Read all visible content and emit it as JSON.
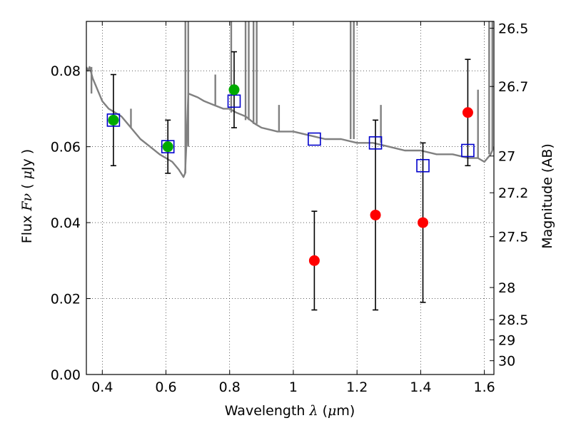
{
  "chart_data": {
    "type": "scatter",
    "xlabel": "Wavelength  λ (μm)",
    "ylabel": "Flux  Fν  ( μJy )",
    "ylabel_right": "Magnitude (AB)",
    "xlim": [
      0.35,
      1.63
    ],
    "ylim": [
      0.0,
      0.093
    ],
    "grid": true,
    "grid_style": "dotted",
    "x_ticks": [
      0.4,
      0.6,
      0.8,
      1.0,
      1.2,
      1.4,
      1.6
    ],
    "x_tick_labels": [
      "0.4",
      "0.6",
      "0.8",
      "1",
      "1.2",
      "1.4",
      "1.6"
    ],
    "y_ticks": [
      0.0,
      0.02,
      0.04,
      0.06,
      0.08
    ],
    "y_tick_labels": [
      "0.00",
      "0.02",
      "0.04",
      "0.06",
      "0.08"
    ],
    "right_ticks": [
      {
        "label": "26.5",
        "mag": 26.5
      },
      {
        "label": "26.7",
        "mag": 26.7
      },
      {
        "label": "27",
        "mag": 27.0
      },
      {
        "label": "27.2",
        "mag": 27.2
      },
      {
        "label": "27.5",
        "mag": 27.5
      },
      {
        "label": "28",
        "mag": 28.0
      },
      {
        "label": "28.5",
        "mag": 28.5
      },
      {
        "label": "29",
        "mag": 29.0
      },
      {
        "label": "30",
        "mag": 30.0
      }
    ],
    "colors": {
      "model_spectrum": "#808080",
      "green_points": "#00aa00",
      "red_points": "#ff0000",
      "squares": "#0000cc",
      "errorbars": "#000000"
    },
    "model_spectrum": {
      "x": [
        0.35,
        0.355,
        0.36,
        0.37,
        0.38,
        0.39,
        0.4,
        0.42,
        0.44,
        0.46,
        0.48,
        0.5,
        0.52,
        0.55,
        0.58,
        0.6,
        0.62,
        0.64,
        0.655,
        0.66,
        0.665,
        0.67,
        0.7,
        0.72,
        0.75,
        0.78,
        0.8,
        0.82,
        0.85,
        0.88,
        0.9,
        0.95,
        1.0,
        1.05,
        1.1,
        1.15,
        1.2,
        1.25,
        1.3,
        1.35,
        1.4,
        1.45,
        1.5,
        1.55,
        1.58,
        1.6,
        1.62,
        1.63
      ],
      "y": [
        0.081,
        0.08,
        0.081,
        0.078,
        0.076,
        0.074,
        0.072,
        0.07,
        0.069,
        0.068,
        0.066,
        0.064,
        0.062,
        0.06,
        0.058,
        0.057,
        0.056,
        0.054,
        0.052,
        0.053,
        0.062,
        0.074,
        0.073,
        0.072,
        0.071,
        0.07,
        0.07,
        0.069,
        0.068,
        0.066,
        0.065,
        0.064,
        0.064,
        0.063,
        0.062,
        0.062,
        0.061,
        0.061,
        0.06,
        0.059,
        0.059,
        0.058,
        0.058,
        0.057,
        0.057,
        0.056,
        0.058,
        0.06
      ]
    },
    "model_spikes": [
      {
        "x": 0.366,
        "top": 0.081,
        "base": 0.074
      },
      {
        "x": 0.49,
        "top": 0.07,
        "base": 0.065
      },
      {
        "x": 0.661,
        "top": 0.093,
        "base": 0.053
      },
      {
        "x": 0.67,
        "top": 0.093,
        "base": 0.06
      },
      {
        "x": 0.755,
        "top": 0.079,
        "base": 0.071
      },
      {
        "x": 0.805,
        "top": 0.093,
        "base": 0.069
      },
      {
        "x": 0.85,
        "top": 0.093,
        "base": 0.067
      },
      {
        "x": 0.86,
        "top": 0.093,
        "base": 0.067
      },
      {
        "x": 0.875,
        "top": 0.093,
        "base": 0.066
      },
      {
        "x": 0.885,
        "top": 0.093,
        "base": 0.066
      },
      {
        "x": 0.955,
        "top": 0.071,
        "base": 0.064
      },
      {
        "x": 1.18,
        "top": 0.093,
        "base": 0.062
      },
      {
        "x": 1.19,
        "top": 0.093,
        "base": 0.062
      },
      {
        "x": 1.275,
        "top": 0.071,
        "base": 0.061
      },
      {
        "x": 1.58,
        "top": 0.075,
        "base": 0.057
      },
      {
        "x": 1.615,
        "top": 0.093,
        "base": 0.058
      },
      {
        "x": 1.625,
        "top": 0.093,
        "base": 0.059
      }
    ],
    "errorbar_points": [
      {
        "x": 0.435,
        "y": 0.067,
        "err": 0.012,
        "color": "green"
      },
      {
        "x": 0.606,
        "y": 0.06,
        "err": 0.007,
        "color": "green"
      },
      {
        "x": 0.814,
        "y": 0.075,
        "err": 0.01,
        "color": "green"
      },
      {
        "x": 1.066,
        "y": 0.03,
        "err": 0.013,
        "color": "red"
      },
      {
        "x": 1.258,
        "y": 0.042,
        "err": 0.025,
        "color": "red"
      },
      {
        "x": 1.407,
        "y": 0.04,
        "err": 0.021,
        "color": "red"
      },
      {
        "x": 1.548,
        "y": 0.069,
        "err": 0.014,
        "color": "red"
      }
    ],
    "model_squares": [
      {
        "x": 0.435,
        "y": 0.067
      },
      {
        "x": 0.606,
        "y": 0.06
      },
      {
        "x": 0.814,
        "y": 0.072
      },
      {
        "x": 1.066,
        "y": 0.062
      },
      {
        "x": 1.258,
        "y": 0.061
      },
      {
        "x": 1.407,
        "y": 0.055
      },
      {
        "x": 1.548,
        "y": 0.059
      }
    ]
  }
}
